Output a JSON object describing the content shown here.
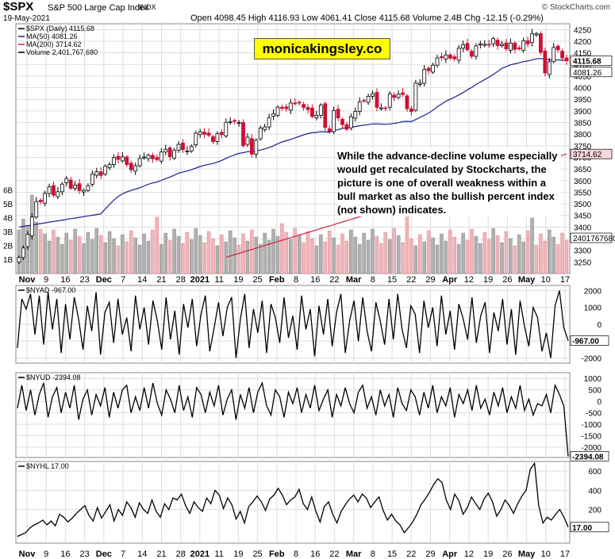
{
  "header": {
    "ticker": "$SPX",
    "name": "S&P 500 Large Cap Index",
    "exchange": "INDX",
    "date": "19-May-2021",
    "quote": "Open 4098.45  High 4116.93  Low 4061.41  Close 4115.68  Volume 2.4B  Chg -12.15 (-0.29%)",
    "credit": "© StockCharts.com"
  },
  "brand": "monicakingsley.co",
  "annotation": "While the advance-decline volume especially would get recalculated by Stockcharts, the picture is one of overall weakness within a bull market as also the bullish percent index (not shown) indicates.",
  "colors": {
    "up": "#ffffff",
    "down": "#cc1133",
    "ma50": "#1a1f8c",
    "ma200": "#cc2244",
    "vol_up": "#b0b0b0",
    "vol_down": "#f0b4bb",
    "line": "#000000",
    "grid": "#dddddd"
  },
  "x_axis_labels": [
    "Nov",
    "9",
    "16",
    "23",
    "Dec",
    "7",
    "14",
    "21",
    "28",
    "2021",
    "11",
    "19",
    "25",
    "Feb",
    "8",
    "16",
    "22",
    "Mar",
    "8",
    "15",
    "22",
    "29",
    "Apr",
    "12",
    "19",
    "26",
    "May",
    "10",
    "17"
  ],
  "chart_data": [
    {
      "type": "candlestick",
      "legend": [
        "$SPX (Daily) 4115.68",
        "MA(50) 4081.26",
        "MA(200) 3714.62",
        "Volume 2,401,767,680"
      ],
      "ylim": [
        3200,
        4275
      ],
      "y_ticks": [
        3250,
        3300,
        3350,
        3400,
        3450,
        3500,
        3550,
        3600,
        3650,
        3700,
        3750,
        3800,
        3850,
        3900,
        3950,
        4000,
        4050,
        4100,
        4150,
        4200,
        4250
      ],
      "volume_ticks": [
        "1B",
        "2B",
        "3B",
        "4B",
        "5B",
        "6B"
      ],
      "last_labels": [
        "4115.68",
        "4081.26",
        "3714.62",
        "2401767680"
      ],
      "close": [
        3269,
        3310,
        3369,
        3443,
        3510,
        3509,
        3545,
        3573,
        3537,
        3552,
        3585,
        3609,
        3567,
        3581,
        3557,
        3558,
        3578,
        3629,
        3638,
        3622,
        3662,
        3669,
        3699,
        3691,
        3702,
        3669,
        3647,
        3664,
        3695,
        3701,
        3709,
        3694,
        3690,
        3723,
        3735,
        3703,
        3730,
        3756,
        3733,
        3727,
        3748,
        3804,
        3809,
        3799,
        3795,
        3768,
        3802,
        3798,
        3851,
        3853,
        3855,
        3850,
        3750,
        3787,
        3714,
        3774,
        3826,
        3831,
        3871,
        3887,
        3916,
        3911,
        3909,
        3934,
        3932,
        3934,
        3915,
        3906,
        3876,
        3881,
        3925,
        3829,
        3811,
        3901,
        3870,
        3841,
        3821,
        3875,
        3898,
        3939,
        3943,
        3963,
        3974,
        3915,
        3913,
        3910,
        3974,
        3958,
        3972,
        3971,
        3909,
        3897,
        4020,
        4019,
        4078,
        4073,
        4097,
        4128,
        4129,
        4141,
        4127,
        4124,
        4170,
        4185,
        4163,
        4135,
        4180,
        4188,
        4187,
        4183,
        4211,
        4181,
        4187,
        4167,
        4192,
        4165,
        4167,
        4202,
        4188,
        4233,
        4232,
        4152,
        4063,
        4112,
        4173,
        4163,
        4128,
        4116
      ]
    },
    {
      "type": "line",
      "legend": "$NYAD -967.00",
      "ylim": [
        -2300,
        2300
      ],
      "y_ticks": [
        -2000,
        -1000,
        0,
        1000,
        2000
      ],
      "last_label": "-967.00",
      "values": [
        -1400,
        1500,
        900,
        1800,
        -600,
        1700,
        -1200,
        1900,
        -300,
        1500,
        -1700,
        1200,
        -900,
        1600,
        300,
        -1500,
        1100,
        -400,
        1900,
        -1800,
        700,
        1300,
        -1100,
        1500,
        -600,
        400,
        -1600,
        1700,
        -300,
        1000,
        -1200,
        1400,
        200,
        -1500,
        1600,
        -900,
        800,
        -1800,
        1200,
        -200,
        1500,
        -1300,
        600,
        1700,
        -1600,
        -200,
        1300,
        -700,
        1000,
        1600,
        -2000,
        300,
        1800,
        -1400,
        900,
        -500,
        1400,
        -1700,
        1200,
        400,
        -1100,
        1600,
        -800,
        500,
        -1500,
        1700,
        -300,
        900,
        -1900,
        1100,
        -600,
        1500,
        -1300,
        700,
        1800,
        -1700,
        200,
        1400,
        -1000,
        1600,
        -400,
        -1600,
        1300,
        200,
        -1200,
        1500,
        -900,
        1800,
        -300,
        -1400,
        1100,
        600,
        -1700,
        1400,
        -200,
        1000,
        -1300,
        1700,
        -600,
        800,
        -1500,
        1200,
        300,
        -900,
        1600,
        -1100,
        500,
        1300,
        -1700,
        700,
        -400,
        1500,
        -1200,
        900,
        -1800,
        1400,
        -100,
        -1300,
        1000,
        400,
        -1600,
        -500,
        -2000,
        1100,
        2000,
        -200,
        -967
      ]
    },
    {
      "type": "line",
      "legend": "$NYUD -2394.08",
      "ylim": [
        -2450,
        1250
      ],
      "y_ticks": [
        -2000,
        -1500,
        -1000,
        -500,
        0,
        500,
        1000
      ],
      "last_label": "-2394.08",
      "values": [
        -300,
        700,
        -400,
        500,
        -600,
        300,
        800,
        -700,
        200,
        600,
        -500,
        400,
        -300,
        700,
        -800,
        100,
        500,
        -600,
        300,
        -200,
        600,
        -700,
        400,
        -300,
        500,
        700,
        -500,
        200,
        -400,
        600,
        -300,
        800,
        -100,
        -600,
        500,
        100,
        -500,
        700,
        -400,
        200,
        -700,
        600,
        300,
        -500,
        400,
        -200,
        700,
        -600,
        100,
        500,
        -800,
        300,
        -300,
        600,
        -500,
        400,
        800,
        -200,
        -600,
        500,
        200,
        -700,
        400,
        -100,
        600,
        -500,
        300,
        -300,
        700,
        -400,
        100,
        500,
        -700,
        300,
        -200,
        600,
        -100,
        -500,
        400,
        700,
        -300,
        200,
        -600,
        500,
        -200,
        300,
        -700,
        600,
        -100,
        -400,
        500,
        200,
        -600,
        400,
        -300,
        700,
        -500,
        200,
        -200,
        600,
        -700,
        300,
        -100,
        500,
        -400,
        700,
        -300,
        100,
        -600,
        400,
        -200,
        600,
        -500,
        200,
        -300,
        700,
        -400,
        100,
        -600,
        -100,
        -200,
        300,
        -500,
        700,
        300,
        -200,
        -2394
      ]
    },
    {
      "type": "line",
      "legend": "$NYHL 17.00",
      "ylim": [
        -150,
        700
      ],
      "y_ticks": [
        200,
        400,
        600
      ],
      "last_label": "17.00",
      "values": [
        -80,
        -60,
        -40,
        10,
        40,
        60,
        90,
        40,
        80,
        30,
        150,
        120,
        70,
        110,
        160,
        200,
        240,
        140,
        80,
        220,
        110,
        180,
        250,
        80,
        200,
        140,
        280,
        220,
        120,
        270,
        200,
        160,
        300,
        180,
        120,
        260,
        200,
        320,
        300,
        360,
        240,
        160,
        280,
        220,
        180,
        320,
        260,
        400,
        350,
        210,
        320,
        250,
        100,
        180,
        60,
        230,
        280,
        340,
        280,
        190,
        310,
        350,
        420,
        350,
        250,
        300,
        330,
        410,
        260,
        200,
        330,
        180,
        70,
        230,
        280,
        150,
        60,
        180,
        250,
        310,
        350,
        280,
        360,
        320,
        220,
        280,
        330,
        190,
        90,
        150,
        80,
        40,
        -40,
        10,
        70,
        150,
        250,
        310,
        380,
        460,
        520,
        480,
        300,
        200,
        360,
        290,
        150,
        220,
        330,
        260,
        200,
        310,
        370,
        280,
        130,
        200,
        300,
        240,
        160,
        260,
        340,
        400,
        620,
        680,
        240,
        60,
        120,
        90,
        150,
        200,
        120,
        17
      ]
    }
  ]
}
